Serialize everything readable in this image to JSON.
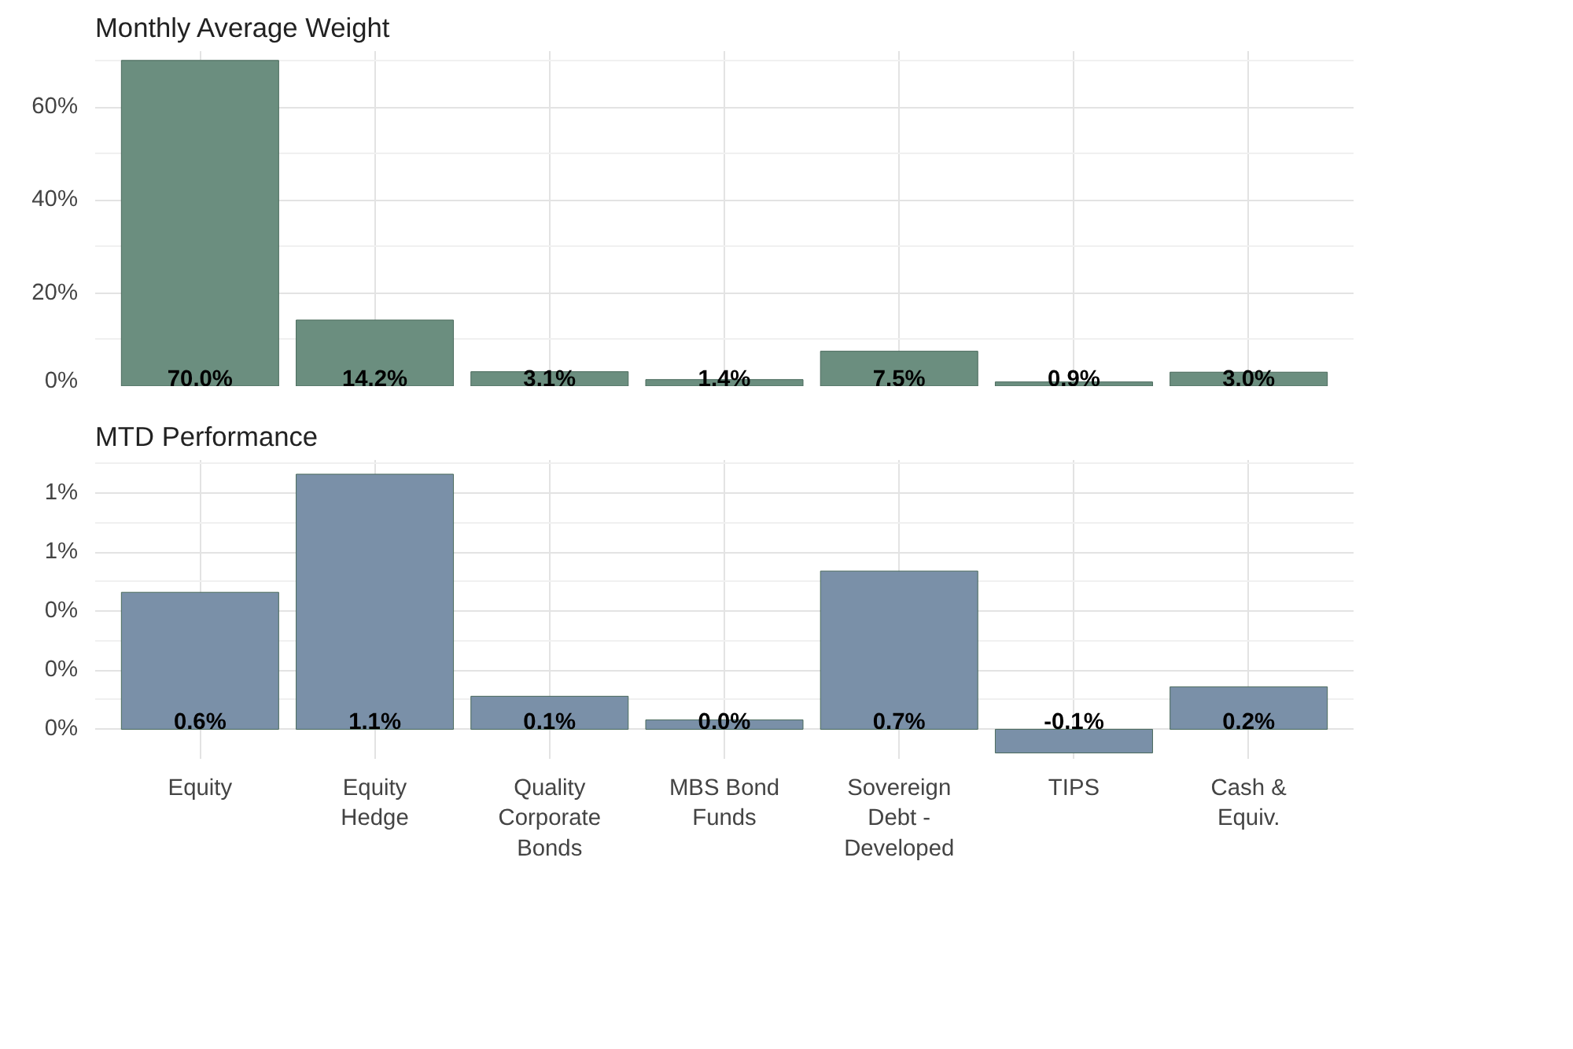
{
  "chart_data": [
    {
      "type": "bar",
      "title": "Monthly Average Weight",
      "categories": [
        "Equity",
        "Equity Hedge",
        "Quality Corporate Bonds",
        "MBS Bond Funds",
        "Sovereign Debt - Developed",
        "TIPS",
        "Cash & Equiv."
      ],
      "values": [
        70.0,
        14.2,
        3.1,
        1.4,
        7.5,
        0.9,
        3.0
      ],
      "color": "#6b8e7f",
      "value_labels": [
        "70.0%",
        "14.2%",
        "3.1%",
        "1.4%",
        "7.5%",
        "0.9%",
        "3.0%"
      ],
      "ylim": [
        0,
        72
      ],
      "yticks": [
        {
          "value": 0,
          "label": "0%"
        },
        {
          "value": 20,
          "label": "20%"
        },
        {
          "value": 40,
          "label": "40%"
        },
        {
          "value": 60,
          "label": "60%"
        }
      ],
      "grid": true,
      "tick_labels": "y"
    },
    {
      "type": "bar",
      "title": "MTD Performance",
      "categories": [
        "Equity",
        "Equity Hedge",
        "Quality Corporate Bonds",
        "MBS Bond Funds",
        "Sovereign Debt - Developed",
        "TIPS",
        "Cash & Equiv."
      ],
      "values": [
        0.58,
        1.08,
        0.14,
        0.04,
        0.67,
        -0.1,
        0.18
      ],
      "color": "#7a90a8",
      "value_labels": [
        "0.6%",
        "1.1%",
        "0.1%",
        "0.0%",
        "0.7%",
        "-0.1%",
        "0.2%"
      ],
      "ylim": [
        -0.125,
        1.14
      ],
      "yticks": [
        {
          "value": 0,
          "label": "0%"
        },
        {
          "value": 0.25,
          "label": "0%"
        },
        {
          "value": 0.5,
          "label": "0%"
        },
        {
          "value": 0.75,
          "label": "1%"
        },
        {
          "value": 1.0,
          "label": "1%"
        }
      ],
      "grid": true
    }
  ]
}
